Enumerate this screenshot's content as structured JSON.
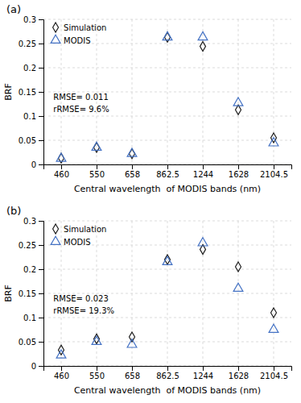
{
  "chart_data": [
    {
      "type": "scatter",
      "title": "(a)",
      "categories": [
        "460",
        "550",
        "658",
        "862.5",
        "1244",
        "1628",
        "2104.5"
      ],
      "series": [
        {
          "name": "Simulation",
          "color": "#1f1f1f",
          "marker": "diamond",
          "values": [
            0.013,
            0.035,
            0.022,
            0.263,
            0.244,
            0.113,
            0.055
          ]
        },
        {
          "name": "MODIS",
          "color": "#4472c4",
          "marker": "triangle",
          "values": [
            0.012,
            0.035,
            0.022,
            0.263,
            0.263,
            0.127,
            0.044
          ]
        }
      ],
      "annotations": [
        "RMSE= 0.011",
        "rRMSE= 9.6%"
      ],
      "x_label": "Central wavelength  of MODIS bands (nm)",
      "y_label": "BRF",
      "ylim": [
        0,
        0.3
      ],
      "yticks": [
        0,
        0.05,
        0.1,
        0.15,
        0.2,
        0.25,
        0.3
      ],
      "grid": true,
      "legend": "upper left"
    },
    {
      "type": "scatter",
      "title": "(b)",
      "categories": [
        "460",
        "550",
        "658",
        "862.5",
        "1244",
        "1628",
        "2104.5"
      ],
      "series": [
        {
          "name": "Simulation",
          "color": "#1f1f1f",
          "marker": "diamond",
          "values": [
            0.033,
            0.056,
            0.06,
            0.22,
            0.241,
            0.205,
            0.11
          ]
        },
        {
          "name": "MODIS",
          "color": "#4472c4",
          "marker": "triangle",
          "values": [
            0.022,
            0.05,
            0.044,
            0.215,
            0.254,
            0.16,
            0.075
          ]
        }
      ],
      "annotations": [
        "RMSE= 0.023",
        "rRMSE= 19.3%"
      ],
      "x_label": "Central wavelength  of MODIS bands (nm)",
      "y_label": "BRF",
      "ylim": [
        0,
        0.3
      ],
      "yticks": [
        0,
        0.05,
        0.1,
        0.15,
        0.2,
        0.25,
        0.3
      ],
      "grid": true,
      "legend": "upper left"
    }
  ]
}
